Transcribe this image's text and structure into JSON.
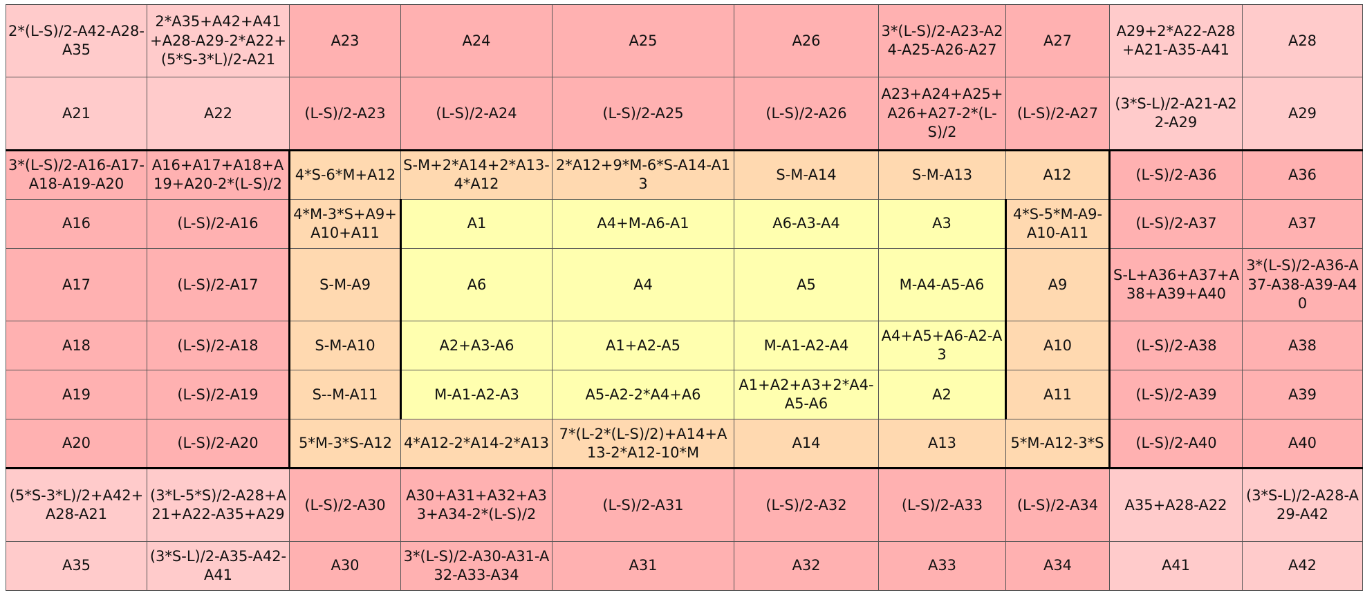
{
  "colors": {
    "outer": "#ffcbcb",
    "ring": "#ffb1b1",
    "orange": "#ffd9b0",
    "yellow": "#ffffaf"
  },
  "table": {
    "rows": [
      [
        {
          "t": "2*(L-S)/2-A42-A28-A35",
          "c": "outer"
        },
        {
          "t": "2*A35+A42+A41+A28-A29-2*A22+(5*S-3*L)/2-A21",
          "c": "outer"
        },
        {
          "t": "A23",
          "c": "ring"
        },
        {
          "t": "A24",
          "c": "ring"
        },
        {
          "t": "A25",
          "c": "ring"
        },
        {
          "t": "A26",
          "c": "ring"
        },
        {
          "t": "3*(L-S)/2-A23-A24-A25-A26-A27",
          "c": "ring"
        },
        {
          "t": "A27",
          "c": "ring"
        },
        {
          "t": "A29+2*A22-A28+A21-A35-A41",
          "c": "outer"
        },
        {
          "t": "A28",
          "c": "outer"
        }
      ],
      [
        {
          "t": "A21",
          "c": "outer"
        },
        {
          "t": "A22",
          "c": "outer"
        },
        {
          "t": "(L-S)/2-A23",
          "c": "ring"
        },
        {
          "t": "(L-S)/2-A24",
          "c": "ring"
        },
        {
          "t": "(L-S)/2-A25",
          "c": "ring"
        },
        {
          "t": "(L-S)/2-A26",
          "c": "ring"
        },
        {
          "t": "A23+A24+A25+A26+A27-2*(L-S)/2",
          "c": "ring"
        },
        {
          "t": "(L-S)/2-A27",
          "c": "ring"
        },
        {
          "t": "(3*S-L)/2-A21-A22-A29",
          "c": "outer"
        },
        {
          "t": "A29",
          "c": "outer"
        }
      ],
      [
        {
          "t": "3*(L-S)/2-A16-A17-A18-A19-A20",
          "c": "ring"
        },
        {
          "t": "A16+A17+A18+A19+A20-2*(L-S)/2",
          "c": "ring"
        },
        {
          "t": "4*S-6*M+A12",
          "c": "orange"
        },
        {
          "t": "S-M+2*A14+2*A13-4*A12",
          "c": "orange"
        },
        {
          "t": "2*A12+9*M-6*S-A14-A13",
          "c": "orange"
        },
        {
          "t": "S-M-A14",
          "c": "orange"
        },
        {
          "t": "S-M-A13",
          "c": "orange"
        },
        {
          "t": "A12",
          "c": "orange"
        },
        {
          "t": "(L-S)/2-A36",
          "c": "ring"
        },
        {
          "t": "A36",
          "c": "ring"
        }
      ],
      [
        {
          "t": "A16",
          "c": "ring"
        },
        {
          "t": "(L-S)/2-A16",
          "c": "ring"
        },
        {
          "t": "4*M-3*S+A9+A10+A11",
          "c": "orange"
        },
        {
          "t": "A1",
          "c": "yellow"
        },
        {
          "t": "A4+M-A6-A1",
          "c": "yellow"
        },
        {
          "t": "A6-A3-A4",
          "c": "yellow"
        },
        {
          "t": "A3",
          "c": "yellow"
        },
        {
          "t": "4*S-5*M-A9-A10-A11",
          "c": "orange"
        },
        {
          "t": "(L-S)/2-A37",
          "c": "ring"
        },
        {
          "t": "A37",
          "c": "ring"
        }
      ],
      [
        {
          "t": "A17",
          "c": "ring"
        },
        {
          "t": "(L-S)/2-A17",
          "c": "ring"
        },
        {
          "t": "S-M-A9",
          "c": "orange"
        },
        {
          "t": "A6",
          "c": "yellow"
        },
        {
          "t": "A4",
          "c": "yellow"
        },
        {
          "t": "A5",
          "c": "yellow"
        },
        {
          "t": "M-A4-A5-A6",
          "c": "yellow"
        },
        {
          "t": "A9",
          "c": "orange"
        },
        {
          "t": "S-L+A36+A37+A38+A39+A40",
          "c": "ring"
        },
        {
          "t": "3*(L-S)/2-A36-A37-A38-A39-A40",
          "c": "ring"
        }
      ],
      [
        {
          "t": "A18",
          "c": "ring"
        },
        {
          "t": "(L-S)/2-A18",
          "c": "ring"
        },
        {
          "t": "S-M-A10",
          "c": "orange"
        },
        {
          "t": "A2+A3-A6",
          "c": "yellow"
        },
        {
          "t": "A1+A2-A5",
          "c": "yellow"
        },
        {
          "t": "M-A1-A2-A4",
          "c": "yellow"
        },
        {
          "t": "A4+A5+A6-A2-A3",
          "c": "yellow"
        },
        {
          "t": "A10",
          "c": "orange"
        },
        {
          "t": "(L-S)/2-A38",
          "c": "ring"
        },
        {
          "t": "A38",
          "c": "ring"
        }
      ],
      [
        {
          "t": "A19",
          "c": "ring"
        },
        {
          "t": "(L-S)/2-A19",
          "c": "ring"
        },
        {
          "t": "S--M-A11",
          "c": "orange"
        },
        {
          "t": "M-A1-A2-A3",
          "c": "yellow"
        },
        {
          "t": "A5-A2-2*A4+A6",
          "c": "yellow"
        },
        {
          "t": "A1+A2+A3+2*A4-A5-A6",
          "c": "yellow"
        },
        {
          "t": "A2",
          "c": "yellow"
        },
        {
          "t": "A11",
          "c": "orange"
        },
        {
          "t": "(L-S)/2-A39",
          "c": "ring"
        },
        {
          "t": "A39",
          "c": "ring"
        }
      ],
      [
        {
          "t": "A20",
          "c": "ring"
        },
        {
          "t": "(L-S)/2-A20",
          "c": "ring"
        },
        {
          "t": "5*M-3*S-A12",
          "c": "orange"
        },
        {
          "t": "4*A12-2*A14-2*A13",
          "c": "orange"
        },
        {
          "t": "7*(L-2*(L-S)/2)+A14+A13-2*A12-10*M",
          "c": "orange"
        },
        {
          "t": "A14",
          "c": "orange"
        },
        {
          "t": "A13",
          "c": "orange"
        },
        {
          "t": "5*M-A12-3*S",
          "c": "orange"
        },
        {
          "t": "(L-S)/2-A40",
          "c": "ring"
        },
        {
          "t": "A40",
          "c": "ring"
        }
      ],
      [
        {
          "t": "(5*S-3*L)/2+A42+A28-A21",
          "c": "outer"
        },
        {
          "t": "(3*L-5*S)/2-A28+A21+A22-A35+A29",
          "c": "outer"
        },
        {
          "t": "(L-S)/2-A30",
          "c": "ring"
        },
        {
          "t": "A30+A31+A32+A33+A34-2*(L-S)/2",
          "c": "ring"
        },
        {
          "t": "(L-S)/2-A31",
          "c": "ring"
        },
        {
          "t": "(L-S)/2-A32",
          "c": "ring"
        },
        {
          "t": "(L-S)/2-A33",
          "c": "ring"
        },
        {
          "t": "(L-S)/2-A34",
          "c": "ring"
        },
        {
          "t": "A35+A28-A22",
          "c": "outer"
        },
        {
          "t": "(3*S-L)/2-A28-A29-A42",
          "c": "outer"
        }
      ],
      [
        {
          "t": "A35",
          "c": "outer"
        },
        {
          "t": "(3*S-L)/2-A35-A42-A41",
          "c": "outer"
        },
        {
          "t": "A30",
          "c": "ring"
        },
        {
          "t": "3*(L-S)/2-A30-A31-A32-A33-A34",
          "c": "ring"
        },
        {
          "t": "A31",
          "c": "ring"
        },
        {
          "t": "A32",
          "c": "ring"
        },
        {
          "t": "A33",
          "c": "ring"
        },
        {
          "t": "A34",
          "c": "ring"
        },
        {
          "t": "A41",
          "c": "outer"
        },
        {
          "t": "A42",
          "c": "outer"
        }
      ]
    ]
  }
}
